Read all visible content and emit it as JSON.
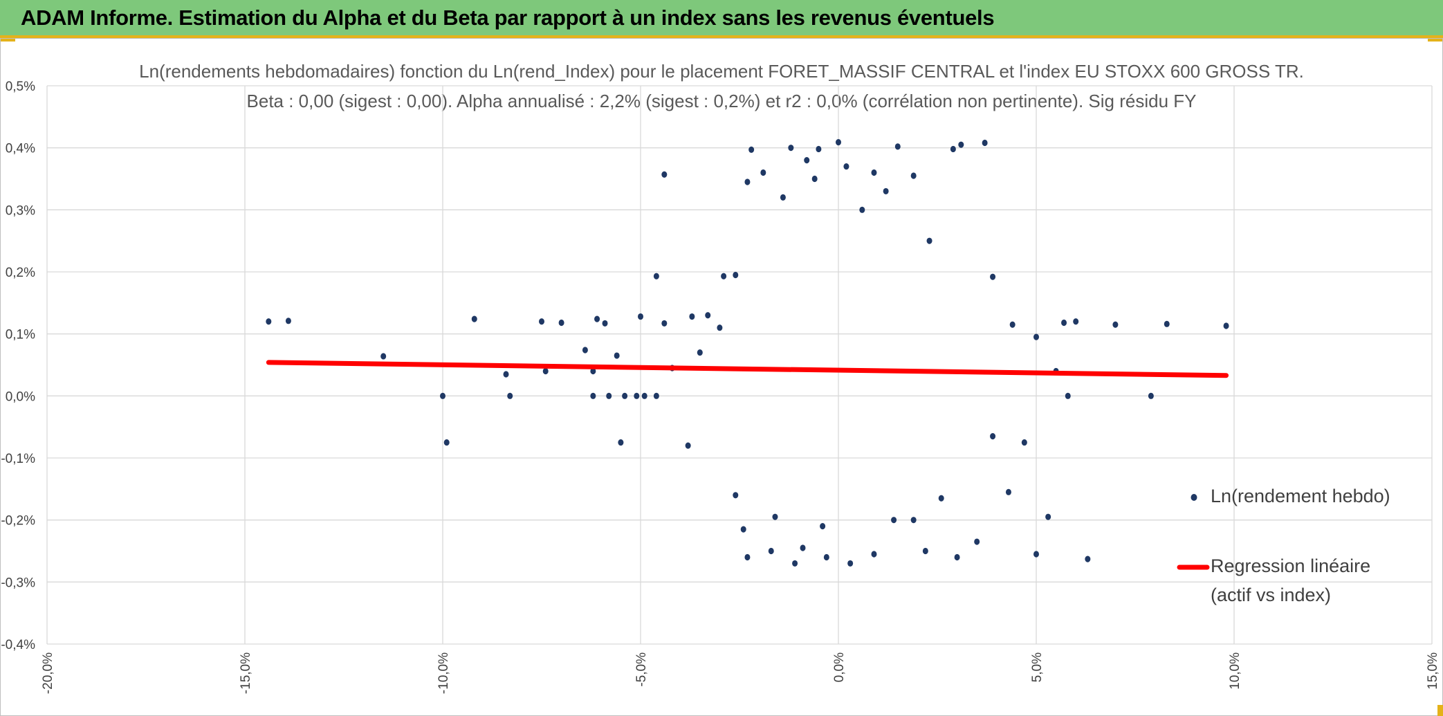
{
  "banner": {
    "title": "ADAM Informe. Estimation du Alpha et du Beta par rapport à un index sans les revenus éventuels"
  },
  "colors": {
    "banner_bg": "#7ec87b",
    "accent": "#e4b21a",
    "points": "#1f3864",
    "regression": "#ff0000",
    "grid": "#d9d9d9"
  },
  "chart_data": {
    "type": "scatter",
    "title_line1": "Ln(rendements hebdomadaires) fonction du Ln(rend_Index) pour le placement FORET_MASSIF CENTRAL et l'index EU STOXX 600 GROSS TR.",
    "title_line2": "Beta : 0,00 (sigest : 0,00). Alpha annualisé : 2,2% (sigest : 0,2%) et r2 : 0,0% (corrélation non pertinente). Sig résidu FY",
    "xlim": [
      -20,
      15
    ],
    "ylim": [
      -0.4,
      0.5
    ],
    "x_ticks": [
      -20,
      -15,
      -10,
      -5,
      0,
      5,
      10,
      15
    ],
    "x_tick_labels": [
      "-20,0%",
      "-15,0%",
      "-10,0%",
      "-5,0%",
      "0,0%",
      "5,0%",
      "10,0%",
      "15,0%"
    ],
    "y_ticks": [
      -0.4,
      -0.3,
      -0.2,
      -0.1,
      0,
      0.1,
      0.2,
      0.3,
      0.4,
      0.5
    ],
    "y_tick_labels": [
      "-0,4%",
      "-0,3%",
      "-0,2%",
      "-0,1%",
      "0,0%",
      "0,1%",
      "0,2%",
      "0,3%",
      "0,4%",
      "0,5%"
    ],
    "grid": "vertical and horizontal major gridlines",
    "legend_position": "right",
    "series": [
      {
        "name": "Ln(rendement hebdo)",
        "kind": "scatter",
        "points": [
          [
            -14.4,
            0.12
          ],
          [
            -13.9,
            0.121
          ],
          [
            -11.5,
            0.064
          ],
          [
            -10,
            0.0
          ],
          [
            -9.9,
            -0.075
          ],
          [
            -9.2,
            0.124
          ],
          [
            -8.4,
            0.035
          ],
          [
            -8.3,
            0.0
          ],
          [
            -7.5,
            0.12
          ],
          [
            -7.4,
            0.04
          ],
          [
            -7.0,
            0.118
          ],
          [
            -6.4,
            0.074
          ],
          [
            -6.2,
            0.0
          ],
          [
            -6.2,
            0.04
          ],
          [
            -6.1,
            0.124
          ],
          [
            -5.9,
            0.117
          ],
          [
            -5.8,
            0.0
          ],
          [
            -5.6,
            0.065
          ],
          [
            -5.5,
            -0.075
          ],
          [
            -5.4,
            0.0
          ],
          [
            -5.1,
            0.0
          ],
          [
            -5.0,
            0.128
          ],
          [
            -4.9,
            0.0
          ],
          [
            -4.6,
            0.193
          ],
          [
            -4.6,
            0.0
          ],
          [
            -4.4,
            0.357
          ],
          [
            -4.4,
            0.117
          ],
          [
            -4.2,
            0.045
          ],
          [
            -3.8,
            -0.08
          ],
          [
            -3.7,
            0.128
          ],
          [
            -3.5,
            0.07
          ],
          [
            -3.3,
            0.13
          ],
          [
            -3.0,
            0.11
          ],
          [
            -2.9,
            0.193
          ],
          [
            -2.6,
            0.195
          ],
          [
            -2.4,
            -0.215
          ],
          [
            -2.3,
            0.345
          ],
          [
            -2.2,
            0.397
          ],
          [
            -1.9,
            0.36
          ],
          [
            -1.7,
            -0.25
          ],
          [
            -1.4,
            0.32
          ],
          [
            -1.2,
            0.4
          ],
          [
            -1.1,
            -0.27
          ],
          [
            -0.8,
            0.38
          ],
          [
            -0.6,
            0.35
          ],
          [
            -0.5,
            0.398
          ],
          [
            -0.3,
            -0.26
          ],
          [
            0.0,
            0.409
          ],
          [
            0.2,
            0.37
          ],
          [
            0.6,
            0.3
          ],
          [
            0.9,
            0.36
          ],
          [
            1.2,
            0.33
          ],
          [
            1.5,
            0.402
          ],
          [
            1.9,
            0.355
          ],
          [
            2.3,
            0.25
          ],
          [
            2.9,
            0.398
          ],
          [
            3.1,
            0.405
          ],
          [
            3.7,
            0.408
          ],
          [
            3.9,
            0.192
          ],
          [
            4.4,
            0.115
          ],
          [
            5.0,
            0.095
          ],
          [
            5.0,
            -0.255
          ],
          [
            5.3,
            -0.195
          ],
          [
            5.5,
            0.04
          ],
          [
            5.7,
            0.118
          ],
          [
            5.8,
            0.0
          ],
          [
            6.0,
            0.12
          ],
          [
            6.3,
            -0.263
          ],
          [
            7.0,
            0.115
          ],
          [
            7.9,
            0.0
          ],
          [
            8.3,
            0.116
          ],
          [
            9.8,
            0.113
          ],
          [
            3.5,
            -0.235
          ],
          [
            4.3,
            -0.155
          ],
          [
            3.9,
            -0.065
          ],
          [
            4.7,
            -0.075
          ],
          [
            3.0,
            -0.26
          ],
          [
            2.6,
            -0.165
          ],
          [
            2.2,
            -0.25
          ],
          [
            1.9,
            -0.2
          ],
          [
            -2.6,
            -0.16
          ],
          [
            -2.3,
            -0.26
          ],
          [
            -1.6,
            -0.195
          ],
          [
            -0.9,
            -0.245
          ],
          [
            -0.4,
            -0.21
          ],
          [
            0.3,
            -0.27
          ],
          [
            0.9,
            -0.255
          ],
          [
            1.4,
            -0.2
          ]
        ]
      },
      {
        "name": "Regression linéaire (actif vs index)",
        "kind": "line",
        "x": [
          -14.4,
          9.8
        ],
        "y": [
          0.054,
          0.033
        ]
      }
    ],
    "legend": [
      "Ln(rendement hebdo)",
      "Regression linéaire",
      "(actif vs index)"
    ]
  }
}
